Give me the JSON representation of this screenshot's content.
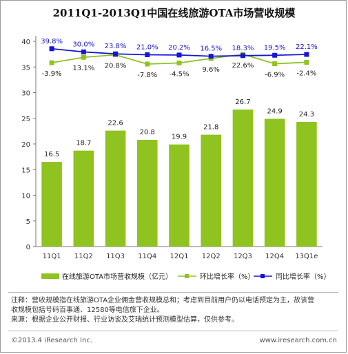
{
  "title": "2011Q1-2013Q1中国在线旅游OTA市场营收规模",
  "chart_data": {
    "type": "bar",
    "categories": [
      "11Q1",
      "11Q2",
      "11Q3",
      "11Q4",
      "12Q1",
      "12Q2",
      "12Q3",
      "12Q4",
      "13Q1e"
    ],
    "ylim": [
      0,
      40
    ],
    "yticks": [
      0,
      5,
      10,
      15,
      20,
      25,
      30,
      35,
      40
    ],
    "series": [
      {
        "name": "在线旅游OTA市场营收规模（亿元）",
        "type": "bar",
        "color": "#8fc31f",
        "values": [
          16.5,
          18.7,
          22.6,
          20.8,
          19.9,
          21.8,
          26.7,
          24.9,
          24.3
        ],
        "labels": [
          "16.5",
          "18.7",
          "22.6",
          "20.8",
          "19.9",
          "21.8",
          "26.7",
          "24.9",
          "24.3"
        ]
      },
      {
        "name": "环比增长率（%）",
        "type": "line",
        "color": "#8fc31f",
        "values": [
          -3.9,
          13.1,
          20.8,
          -7.8,
          -4.5,
          9.6,
          22.6,
          -6.9,
          -2.4
        ],
        "labels": [
          "-3.9%",
          "13.1%",
          "20.8%",
          "-7.8%",
          "-4.5%",
          "9.6%",
          "22.6%",
          "-6.9%",
          "-2.4%"
        ]
      },
      {
        "name": "同比增长率（%）",
        "type": "line",
        "color": "#1515d4",
        "values": [
          39.8,
          30.0,
          23.8,
          21.0,
          20.2,
          16.5,
          18.3,
          19.5,
          22.1
        ],
        "labels": [
          "39.8%",
          "30.0%",
          "23.8%",
          "21.0%",
          "20.2%",
          "16.5%",
          "18.3%",
          "19.5%",
          "22.1%"
        ]
      }
    ]
  },
  "legend": {
    "bar": "在线旅游OTA市场营收规模（亿元）",
    "green_line": "环比增长率（%）",
    "blue_line": "同比增长率（%）"
  },
  "notes": {
    "line1": "注释：营收规模指在线旅游OTA企业佣金营收规模总和；考虑到目前用户仍以电话预定为主，故该营",
    "line2": "收规模包括号码百事通、12580等电信旅下企业。",
    "line3": "来源：根据企业公开财报、行业访谈及艾瑞统计预测模型估算，仅供参考。"
  },
  "footer": {
    "copyright": "©2013.4 iResearch Inc.",
    "website": "www.iresearch.com.cn"
  }
}
